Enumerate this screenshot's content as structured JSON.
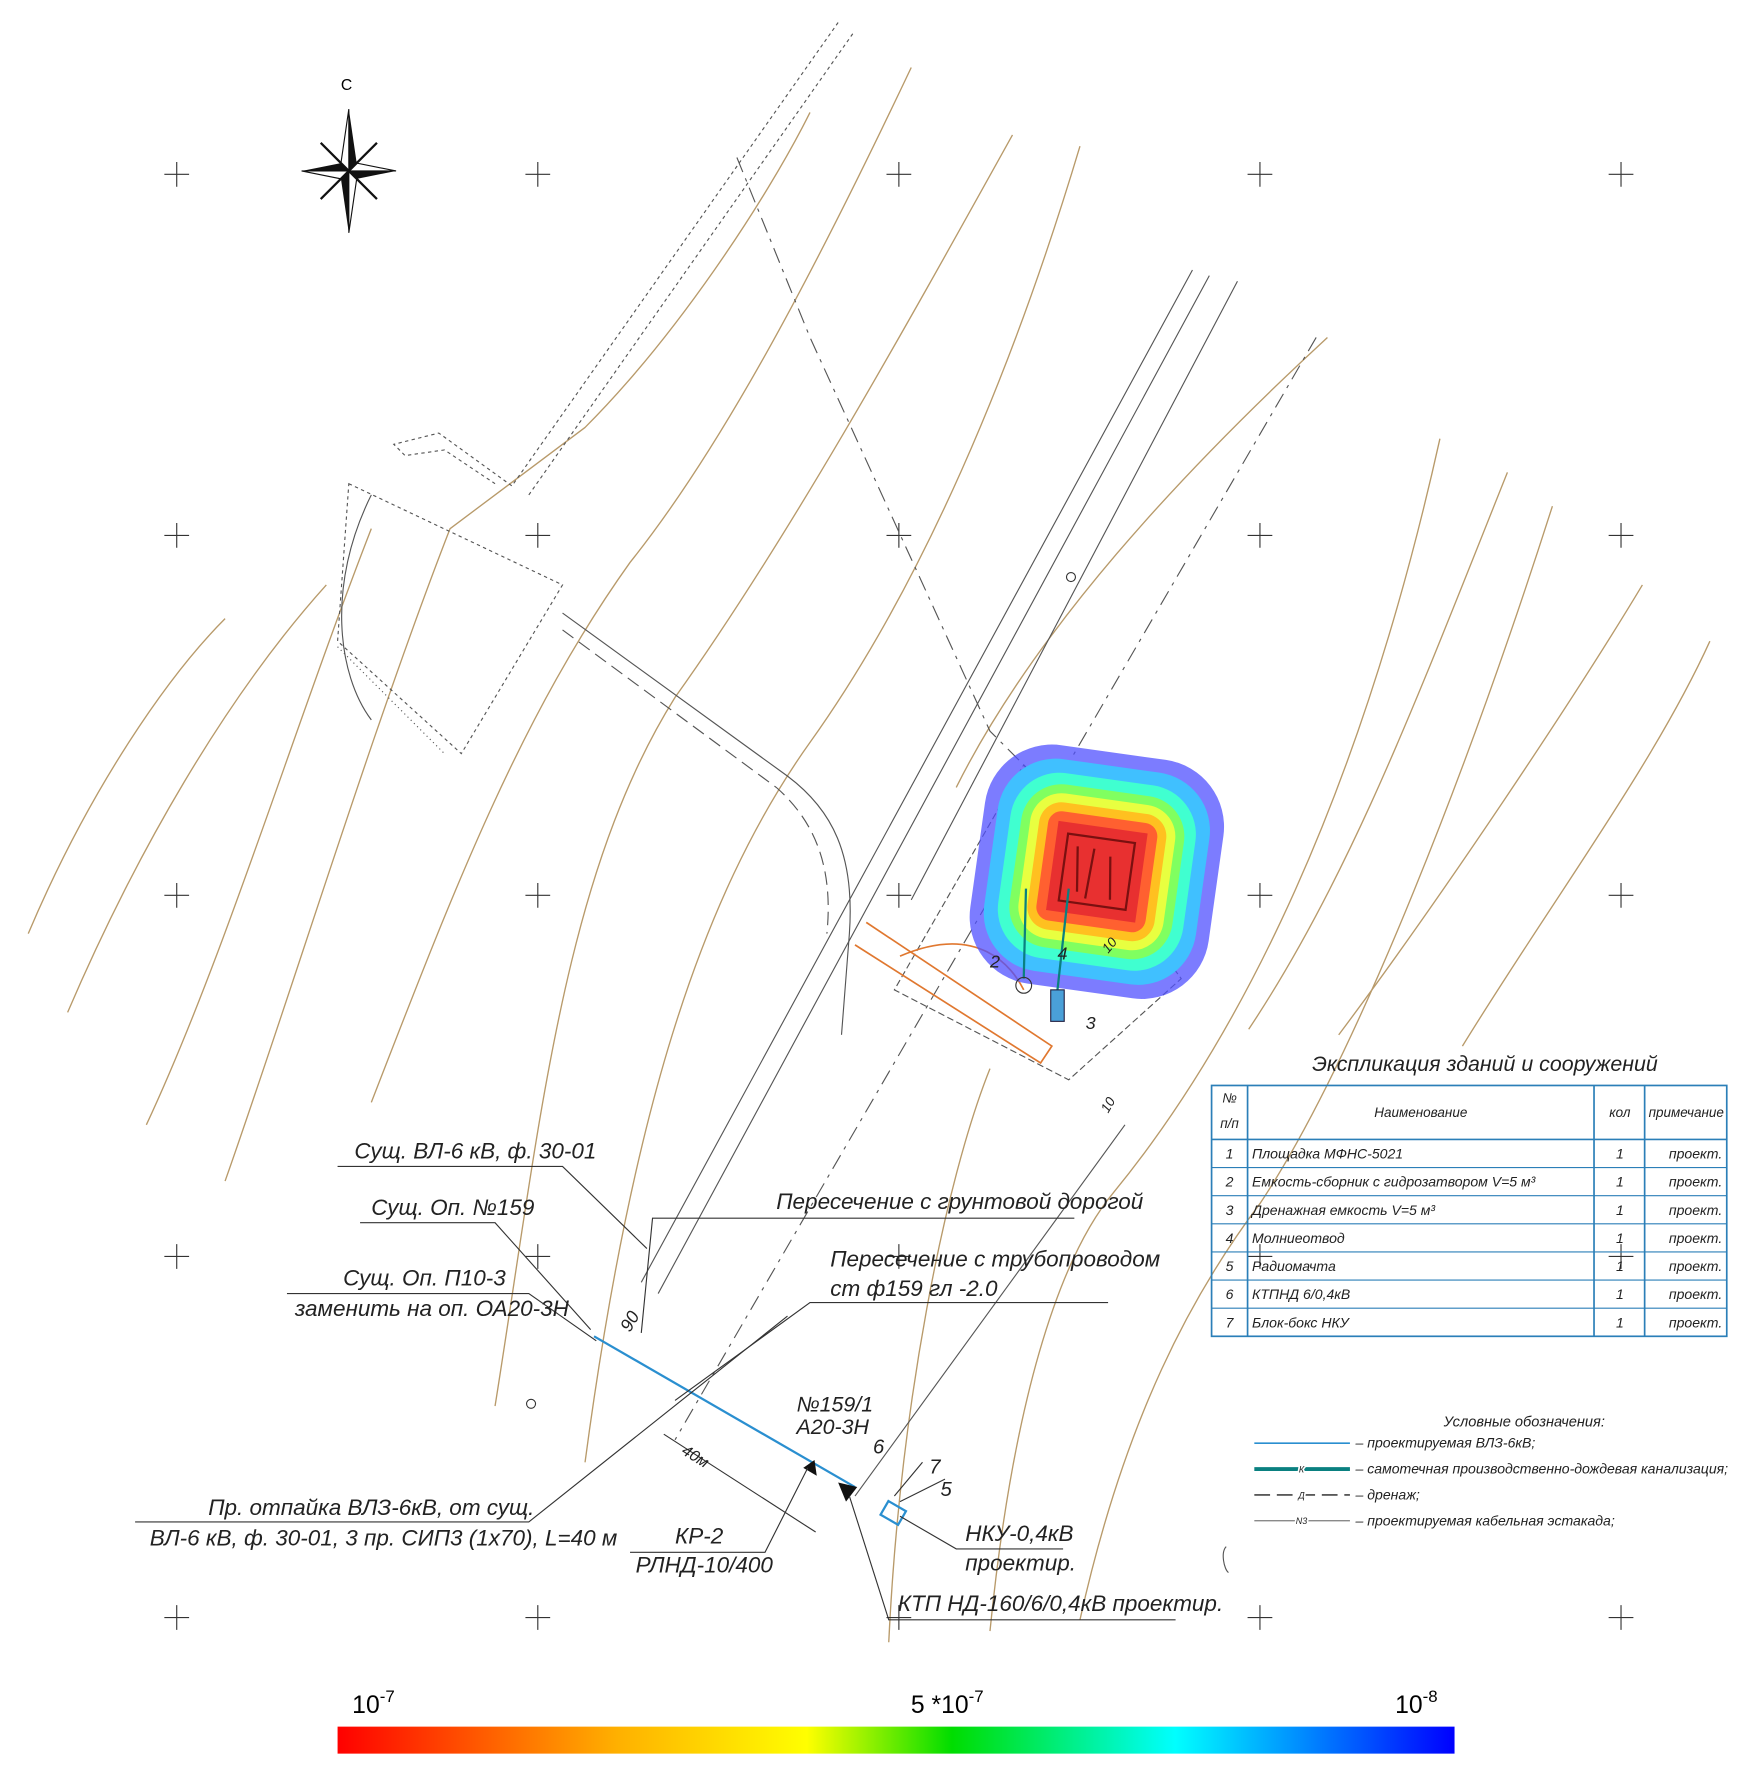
{
  "north": "С",
  "callouts": [
    "Сущ. ВЛ-6 кВ, ф. 30-01",
    "Сущ. Оп. №159",
    "Сущ. Оп. П10-3",
    "заменить на оп. ОА20-3Н",
    "Пересечение с грунтовой дорогой",
    "Пересечение с трубопроводом",
    "ст ф159 гл -2.0",
    "Пр. отпайка ВЛЗ-6кВ, от сущ.",
    "ВЛ-6 кВ, ф. 30-01, 3 пр. СИП3 (1х70), L=40 м",
    "КР-2",
    "РЛНД-10/400",
    "№159/1",
    "А20-3Н",
    "НКУ-0,4кВ",
    "проектир.",
    "КТП НД-160/6/0,4кВ проектир.",
    "40м",
    "6",
    "7",
    "5",
    "2",
    "3",
    "4",
    "10",
    "10",
    "90"
  ],
  "table": {
    "title": "Экспликация зданий и сооружений",
    "header": [
      "№",
      "п/п",
      "Наименование",
      "кол",
      "примечание"
    ],
    "rows": [
      [
        "1",
        "Площадка МФНС-5021",
        "1",
        "проект."
      ],
      [
        "2",
        "Емкость-сборник с гидрозатвором V=5 м³",
        "1",
        "проект."
      ],
      [
        "3",
        "Дренажная емкость V=5 м³",
        "1",
        "проект."
      ],
      [
        "4",
        "Молниеотвод",
        "1",
        "проект."
      ],
      [
        "5",
        "Радиомачта",
        "1",
        "проект."
      ],
      [
        "6",
        "КТПНД 6/0,4кВ",
        "1",
        "проект."
      ],
      [
        "7",
        "Блок-бокс НКУ",
        "1",
        "проект."
      ]
    ]
  },
  "legend": {
    "title": "Условные обозначения:",
    "items": [
      "– проектируемая ВЛЗ-6кВ;",
      "– самотечная производственно-дождевая канализация;",
      "– дренаж;",
      "– проектируемая кабельная эстакада;"
    ],
    "marks": [
      "К",
      "Д",
      "N3"
    ]
  },
  "colorbar": {
    "labels": [
      {
        "base": "10",
        "exp": "-7"
      },
      {
        "base": "5 *10",
        "exp": "-7"
      },
      {
        "base": "10",
        "exp": "-8"
      }
    ]
  }
}
